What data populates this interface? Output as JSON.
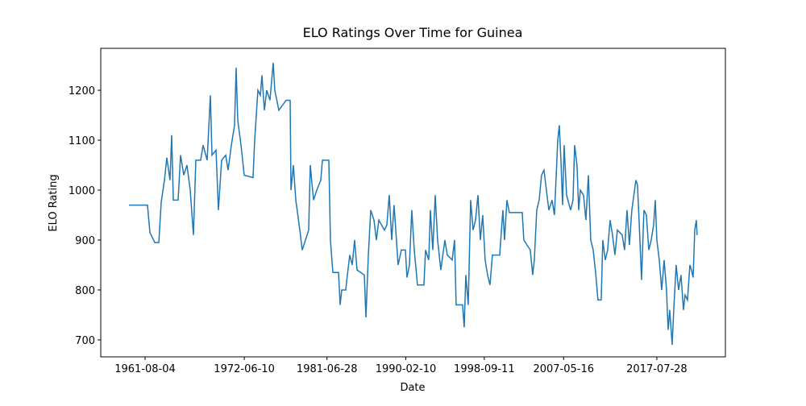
{
  "chart_data": {
    "type": "line",
    "title": "ELO Ratings Over Time for Guinea",
    "x_label": "Date",
    "y_label": "ELO Rating",
    "x": [
      "1959-10-29",
      "1961-11-07",
      "1962-02-13",
      "1962-08-26",
      "1963-02-03",
      "1963-05-08",
      "1963-09-16",
      "1963-12-20",
      "1964-04-25",
      "1964-07-01",
      "1964-09-05",
      "1965-03-15",
      "1965-06-20",
      "1965-10-27",
      "1966-03-04",
      "1966-07-12",
      "1966-11-17",
      "1967-02-21",
      "1967-09-02",
      "1967-12-08",
      "1968-05-18",
      "1968-09-24",
      "1968-11-27",
      "1969-05-08",
      "1969-08-11",
      "1969-12-18",
      "1970-05-30",
      "1970-09-02",
      "1971-01-10",
      "1971-05-18",
      "1971-07-20",
      "1971-09-23",
      "1972-01-31",
      "1972-06-07",
      "1973-05-26",
      "1973-07-30",
      "1973-12-06",
      "1974-03-14",
      "1974-05-16",
      "1974-08-22",
      "1974-11-25",
      "1975-04-02",
      "1975-08-10",
      "1975-10-13",
      "1976-03-21",
      "1977-01-07",
      "1977-06-17",
      "1977-07-19",
      "1977-10-23",
      "1978-01-29",
      "1978-07-09",
      "1978-10-12",
      "1979-06-27",
      "1979-08-29",
      "1980-01-07",
      "1980-05-15",
      "1980-10-23",
      "1980-12-27",
      "1981-09-09",
      "1981-11-12",
      "1982-02-17",
      "1982-10-01",
      "1982-12-05",
      "1983-02-06",
      "1983-07-16",
      "1983-09-19",
      "1983-12-25",
      "1984-04-01",
      "1984-07-05",
      "1984-10-11",
      "1985-07-28",
      "1985-10-01",
      "1986-01-05",
      "1986-04-11",
      "1986-08-18",
      "1986-11-21",
      "1987-02-27",
      "1987-10-09",
      "1988-01-14",
      "1988-04-19",
      "1988-07-26",
      "1988-10-29",
      "1989-04-08",
      "1989-08-15",
      "1990-01-25",
      "1990-03-28",
      "1990-07-04",
      "1990-10-07",
      "1991-01-13",
      "1991-05-22",
      "1992-02-03",
      "1992-04-08",
      "1992-08-14",
      "1992-10-18",
      "1993-01-23",
      "1993-04-30",
      "1993-08-03",
      "1993-12-10",
      "1994-05-20",
      "1994-08-25",
      "1995-03-08",
      "1995-06-11",
      "1995-08-14",
      "1996-04-27",
      "1996-07-01",
      "1996-09-04",
      "1996-12-09",
      "1997-03-16",
      "1997-06-20",
      "1997-09-26",
      "1998-01-01",
      "1998-04-06",
      "1998-07-11",
      "1998-10-15",
      "1999-01-21",
      "1999-04-27",
      "1999-08-02",
      "2000-05-19",
      "2000-09-24",
      "2000-11-28",
      "2001-03-04",
      "2001-06-09",
      "2002-11-06",
      "2003-01-08",
      "2003-09-23",
      "2003-12-28",
      "2004-03-02",
      "2004-06-07",
      "2004-09-12",
      "2004-12-16",
      "2005-03-25",
      "2005-06-28",
      "2005-10-04",
      "2006-02-10",
      "2006-05-16",
      "2006-09-24",
      "2006-11-25",
      "2007-01-30",
      "2007-04-05",
      "2007-06-06",
      "2007-09-12",
      "2008-02-20",
      "2008-05-26",
      "2008-07-30",
      "2008-11-02",
      "2009-01-08",
      "2009-03-14",
      "2009-07-20",
      "2009-10-24",
      "2010-01-30",
      "2010-05-05",
      "2010-08-11",
      "2010-11-14",
      "2011-02-17",
      "2011-06-27",
      "2011-08-29",
      "2011-12-05",
      "2012-03-10",
      "2012-06-16",
      "2012-09-20",
      "2012-12-27",
      "2013-04-02",
      "2013-10-12",
      "2014-01-16",
      "2014-04-23",
      "2014-07-27",
      "2014-11-02",
      "2015-04-12",
      "2015-06-16",
      "2015-08-18",
      "2015-11-24",
      "2016-02-28",
      "2016-06-05",
      "2016-09-09",
      "2016-12-14",
      "2017-03-21",
      "2017-05-26",
      "2017-07-28",
      "2017-11-02",
      "2018-02-06",
      "2018-05-15",
      "2018-08-18",
      "2018-10-22",
      "2018-12-25",
      "2019-04-01",
      "2019-06-03",
      "2019-09-08",
      "2019-12-13",
      "2020-03-20",
      "2020-06-25",
      "2020-08-29",
      "2020-12-03",
      "2021-03-10",
      "2021-05-12",
      "2021-07-16",
      "2021-09-19",
      "2021-11-21",
      "2021-12-24"
    ],
    "series": [
      {
        "name": "Guinea",
        "color": "#1f77b4",
        "values": [
          970,
          970,
          915,
          895,
          895,
          975,
          1020,
          1065,
          1020,
          1110,
          980,
          980,
          1070,
          1030,
          1050,
          1000,
          910,
          1060,
          1060,
          1090,
          1060,
          1190,
          1070,
          1080,
          960,
          1060,
          1070,
          1040,
          1090,
          1130,
          1245,
          1140,
          1090,
          1030,
          1025,
          1100,
          1200,
          1190,
          1230,
          1160,
          1200,
          1180,
          1255,
          1200,
          1160,
          1180,
          1180,
          1000,
          1050,
          980,
          920,
          880,
          920,
          1050,
          980,
          1000,
          1020,
          1060,
          1060,
          900,
          835,
          835,
          770,
          800,
          800,
          830,
          870,
          850,
          900,
          840,
          830,
          745,
          870,
          960,
          940,
          900,
          940,
          920,
          930,
          990,
          900,
          970,
          850,
          880,
          880,
          825,
          850,
          960,
          880,
          810,
          810,
          880,
          860,
          960,
          880,
          990,
          900,
          840,
          900,
          870,
          860,
          900,
          770,
          770,
          725,
          830,
          770,
          980,
          920,
          940,
          990,
          900,
          950,
          860,
          830,
          810,
          870,
          870,
          960,
          900,
          980,
          955,
          955,
          900,
          880,
          830,
          860,
          960,
          980,
          1030,
          1040,
          1000,
          960,
          980,
          950,
          1100,
          1130,
          1060,
          970,
          1090,
          990,
          960,
          980,
          1090,
          1050,
          960,
          1000,
          990,
          940,
          1030,
          900,
          880,
          835,
          780,
          780,
          900,
          860,
          880,
          940,
          910,
          870,
          920,
          910,
          880,
          960,
          890,
          960,
          1020,
          1010,
          940,
          820,
          960,
          950,
          880,
          900,
          930,
          980,
          900,
          860,
          800,
          860,
          800,
          720,
          760,
          690,
          760,
          850,
          800,
          830,
          760,
          790,
          780,
          850,
          840,
          825,
          920,
          940,
          910
        ]
      }
    ],
    "xlim": [
      "1956-09-27",
      "2025-01-26"
    ],
    "xticks": [
      "1961-08-04",
      "1972-06-10",
      "1981-06-28",
      "1990-02-10",
      "1998-09-11",
      "2007-05-16",
      "2017-07-28"
    ],
    "ylim": [
      666,
      1284
    ],
    "yticks": [
      700,
      800,
      900,
      1000,
      1100,
      1200
    ]
  }
}
